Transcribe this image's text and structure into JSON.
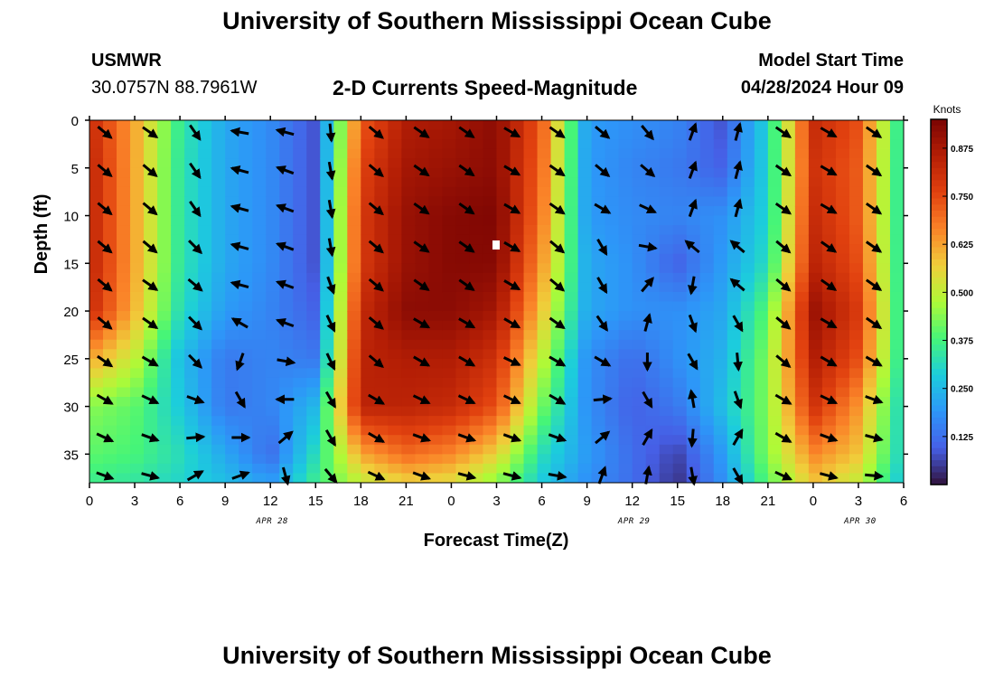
{
  "header": {
    "title_top": "University of Southern Mississippi Ocean Cube",
    "title_bottom": "University of Southern Mississippi Ocean Cube",
    "station_id": "USMWR",
    "station_coords": "30.0757N  88.7961W",
    "chart_title": "2-D Currents Speed-Magnitude",
    "model_start_label": "Model Start Time",
    "model_start_value": "04/28/2024 Hour 09"
  },
  "chart_data": {
    "type": "heatmap",
    "title": "2-D Currents Speed-Magnitude",
    "xlabel": "Forecast Time(Z)",
    "ylabel": "Depth (ft)",
    "x_tick_labels": [
      "0",
      "3",
      "6",
      "9",
      "12",
      "15",
      "18",
      "21",
      "0",
      "3",
      "6",
      "9",
      "12",
      "15",
      "18",
      "21",
      "0",
      "3",
      "6"
    ],
    "x_range_hours": [
      0,
      54
    ],
    "date_labels": [
      {
        "label": "APR 28",
        "hour": 12
      },
      {
        "label": "APR 29",
        "hour": 36
      },
      {
        "label": "APR 30",
        "hour": 51
      }
    ],
    "y_tick_labels": [
      "0",
      "5",
      "10",
      "15",
      "20",
      "25",
      "30",
      "35"
    ],
    "y_ticks": [
      0,
      5,
      10,
      15,
      20,
      25,
      30,
      35
    ],
    "ylim": [
      0,
      38
    ],
    "y_inverted": true,
    "colorbar": {
      "label": "Knots",
      "tick_labels": [
        "0.875",
        "0.750",
        "0.625",
        "0.500",
        "0.375",
        "0.250",
        "0.125"
      ],
      "ticks": [
        0.875,
        0.75,
        0.625,
        0.5,
        0.375,
        0.25,
        0.125
      ],
      "range": [
        0,
        0.95
      ],
      "colormap": "turbo"
    },
    "speed_field": {
      "time_hours": [
        0,
        3,
        6,
        9,
        12,
        15,
        18,
        21,
        24,
        27,
        30,
        33,
        36,
        39,
        42,
        45,
        48,
        51,
        54
      ],
      "depth_ft": [
        0,
        5,
        10,
        15,
        20,
        25,
        30,
        35,
        38
      ],
      "values_knots": [
        [
          0.82,
          0.62,
          0.35,
          0.22,
          0.17,
          0.08,
          0.72,
          0.86,
          0.88,
          0.92,
          0.72,
          0.2,
          0.18,
          0.16,
          0.08,
          0.3,
          0.82,
          0.74,
          0.3
        ],
        [
          0.84,
          0.62,
          0.34,
          0.22,
          0.17,
          0.08,
          0.76,
          0.88,
          0.9,
          0.92,
          0.7,
          0.2,
          0.16,
          0.14,
          0.1,
          0.3,
          0.8,
          0.72,
          0.3
        ],
        [
          0.84,
          0.62,
          0.34,
          0.22,
          0.17,
          0.08,
          0.78,
          0.9,
          0.93,
          0.94,
          0.68,
          0.2,
          0.17,
          0.16,
          0.18,
          0.3,
          0.82,
          0.72,
          0.3
        ],
        [
          0.84,
          0.62,
          0.34,
          0.22,
          0.17,
          0.08,
          0.78,
          0.9,
          0.93,
          0.93,
          0.64,
          0.22,
          0.18,
          0.1,
          0.2,
          0.32,
          0.84,
          0.74,
          0.3
        ],
        [
          0.82,
          0.6,
          0.32,
          0.2,
          0.16,
          0.1,
          0.82,
          0.92,
          0.92,
          0.88,
          0.58,
          0.22,
          0.18,
          0.18,
          0.22,
          0.4,
          0.9,
          0.78,
          0.3
        ],
        [
          0.62,
          0.5,
          0.26,
          0.14,
          0.16,
          0.14,
          0.84,
          0.86,
          0.86,
          0.8,
          0.5,
          0.18,
          0.12,
          0.18,
          0.24,
          0.44,
          0.86,
          0.74,
          0.3
        ],
        [
          0.44,
          0.4,
          0.28,
          0.14,
          0.16,
          0.25,
          0.84,
          0.84,
          0.82,
          0.74,
          0.42,
          0.18,
          0.1,
          0.14,
          0.26,
          0.44,
          0.8,
          0.64,
          0.28
        ],
        [
          0.4,
          0.38,
          0.32,
          0.22,
          0.12,
          0.32,
          0.62,
          0.7,
          0.66,
          0.56,
          0.32,
          0.2,
          0.12,
          0.06,
          0.2,
          0.44,
          0.66,
          0.58,
          0.28
        ],
        [
          0.36,
          0.34,
          0.3,
          0.26,
          0.2,
          0.36,
          0.5,
          0.56,
          0.54,
          0.44,
          0.28,
          0.18,
          0.12,
          0.04,
          0.18,
          0.4,
          0.58,
          0.5,
          0.26
        ]
      ]
    },
    "arrow_vectors": {
      "time_hours": [
        1,
        4,
        7,
        10,
        13,
        16,
        19,
        22,
        25,
        28,
        31,
        34,
        37,
        40,
        43,
        46,
        49,
        52
      ],
      "depth_ft": [
        0.5,
        4.5,
        8.5,
        12.5,
        16.5,
        20.5,
        24.5,
        28.5,
        32.5,
        36.5
      ],
      "angles_deg_cw_from_east": [
        [
          40,
          35,
          55,
          -170,
          -165,
          85,
          40,
          35,
          35,
          30,
          35,
          40,
          50,
          -70,
          -75,
          35,
          30,
          35
        ],
        [
          40,
          40,
          55,
          -165,
          -160,
          80,
          40,
          35,
          35,
          30,
          35,
          40,
          40,
          -70,
          -75,
          35,
          30,
          35
        ],
        [
          40,
          40,
          55,
          -165,
          -160,
          80,
          40,
          35,
          35,
          30,
          35,
          30,
          25,
          -70,
          -75,
          35,
          30,
          35
        ],
        [
          40,
          40,
          45,
          -165,
          -160,
          80,
          40,
          35,
          35,
          30,
          40,
          60,
          10,
          -140,
          -140,
          40,
          35,
          35
        ],
        [
          40,
          35,
          40,
          -165,
          -160,
          70,
          40,
          35,
          35,
          30,
          40,
          60,
          -50,
          100,
          -140,
          40,
          35,
          35
        ],
        [
          40,
          35,
          45,
          -150,
          -160,
          65,
          40,
          30,
          30,
          30,
          35,
          55,
          -75,
          70,
          60,
          40,
          30,
          35
        ],
        [
          35,
          30,
          45,
          110,
          10,
          65,
          40,
          30,
          30,
          25,
          30,
          30,
          90,
          60,
          85,
          40,
          30,
          30
        ],
        [
          30,
          25,
          20,
          60,
          180,
          60,
          30,
          25,
          25,
          25,
          30,
          -5,
          60,
          -100,
          70,
          30,
          25,
          20
        ],
        [
          25,
          20,
          -5,
          0,
          -40,
          60,
          30,
          20,
          20,
          20,
          20,
          -40,
          -60,
          95,
          -60,
          30,
          20,
          15
        ],
        [
          20,
          15,
          -30,
          -20,
          75,
          50,
          25,
          20,
          15,
          15,
          10,
          -70,
          -80,
          80,
          60,
          25,
          15,
          5
        ]
      ]
    },
    "grid": false
  }
}
